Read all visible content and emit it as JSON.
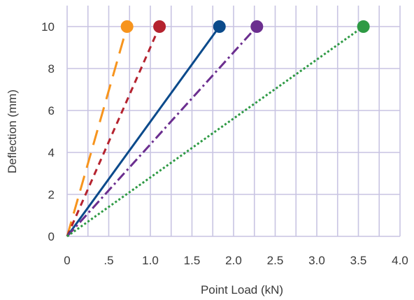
{
  "chart_data": {
    "type": "line",
    "title": "",
    "xlabel": "Point Load (kN)",
    "ylabel": "Deflection (mm)",
    "xlim": [
      0,
      4.0
    ],
    "ylim": [
      0,
      11
    ],
    "grid": true,
    "x_ticks": [
      {
        "value": 0,
        "label": "0"
      },
      {
        "value": 0.5,
        "label": ".5"
      },
      {
        "value": 1.0,
        "label": "1.0"
      },
      {
        "value": 1.5,
        "label": "1.5"
      },
      {
        "value": 2.0,
        "label": "2.0"
      },
      {
        "value": 2.5,
        "label": "2.5"
      },
      {
        "value": 3.0,
        "label": "3.0"
      },
      {
        "value": 3.5,
        "label": "3.5"
      },
      {
        "value": 4.0,
        "label": "4.0"
      }
    ],
    "y_ticks": [
      {
        "value": 0,
        "label": "0"
      },
      {
        "value": 2,
        "label": "2"
      },
      {
        "value": 4,
        "label": "4"
      },
      {
        "value": 6,
        "label": "6"
      },
      {
        "value": 8,
        "label": "8"
      },
      {
        "value": 10,
        "label": "10"
      }
    ],
    "series": [
      {
        "color": "#f7941d",
        "dash": "long-dash",
        "x": [
          0,
          0.72
        ],
        "y": [
          0,
          10
        ],
        "marker_at_end": true
      },
      {
        "color": "#b5232f",
        "dash": "dash",
        "x": [
          0,
          1.11
        ],
        "y": [
          0,
          10
        ],
        "marker_at_end": true
      },
      {
        "color": "#0b4a8b",
        "dash": "solid",
        "x": [
          0,
          1.83
        ],
        "y": [
          0,
          10
        ],
        "marker_at_end": true
      },
      {
        "color": "#6b2e8f",
        "dash": "dash-dot",
        "x": [
          0,
          2.28
        ],
        "y": [
          0,
          10
        ],
        "marker_at_end": true
      },
      {
        "color": "#2e9a44",
        "dash": "dot",
        "x": [
          0,
          3.56
        ],
        "y": [
          0,
          10
        ],
        "marker_at_end": true
      }
    ]
  }
}
